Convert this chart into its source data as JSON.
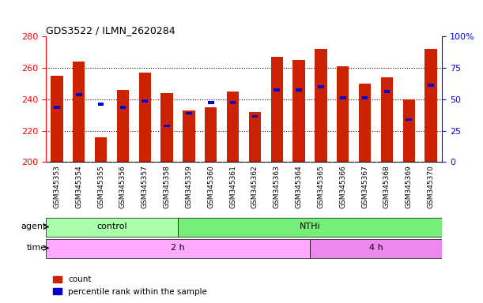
{
  "title": "GDS3522 / ILMN_2620284",
  "samples": [
    "GSM345353",
    "GSM345354",
    "GSM345355",
    "GSM345356",
    "GSM345357",
    "GSM345358",
    "GSM345359",
    "GSM345360",
    "GSM345361",
    "GSM345362",
    "GSM345363",
    "GSM345364",
    "GSM345365",
    "GSM345366",
    "GSM345367",
    "GSM345368",
    "GSM345369",
    "GSM345370"
  ],
  "counts": [
    255,
    264,
    216,
    246,
    257,
    244,
    233,
    235,
    245,
    232,
    267,
    265,
    272,
    261,
    250,
    254,
    240,
    272
  ],
  "percentile_ranks": [
    235,
    243,
    237,
    235,
    239,
    223,
    231,
    238,
    238,
    229,
    246,
    246,
    248,
    241,
    241,
    245,
    227,
    249
  ],
  "ymin": 200,
  "ymax": 280,
  "yticks": [
    200,
    220,
    240,
    260,
    280
  ],
  "right_yticks": [
    0,
    25,
    50,
    75,
    100
  ],
  "right_ylabels": [
    "0",
    "25",
    "50",
    "75",
    "100%"
  ],
  "bar_color": "#cc2200",
  "percentile_color": "#0000cc",
  "agent_groups": [
    {
      "label": "control",
      "start": 0,
      "end": 6,
      "color": "#aaffaa"
    },
    {
      "label": "NTHi",
      "start": 6,
      "end": 18,
      "color": "#77ee77"
    }
  ],
  "time_groups": [
    {
      "label": "2 h",
      "start": 0,
      "end": 12,
      "color": "#ffaaff"
    },
    {
      "label": "4 h",
      "start": 12,
      "end": 18,
      "color": "#ee88ee"
    }
  ],
  "agent_label": "agent",
  "time_label": "time",
  "legend_count_label": "count",
  "legend_percentile_label": "percentile rank within the sample",
  "bar_width": 0.55,
  "fig_bg": "#ffffff",
  "tick_label_fontsize": 6.5,
  "xticklabel_bg": "#dddddd"
}
